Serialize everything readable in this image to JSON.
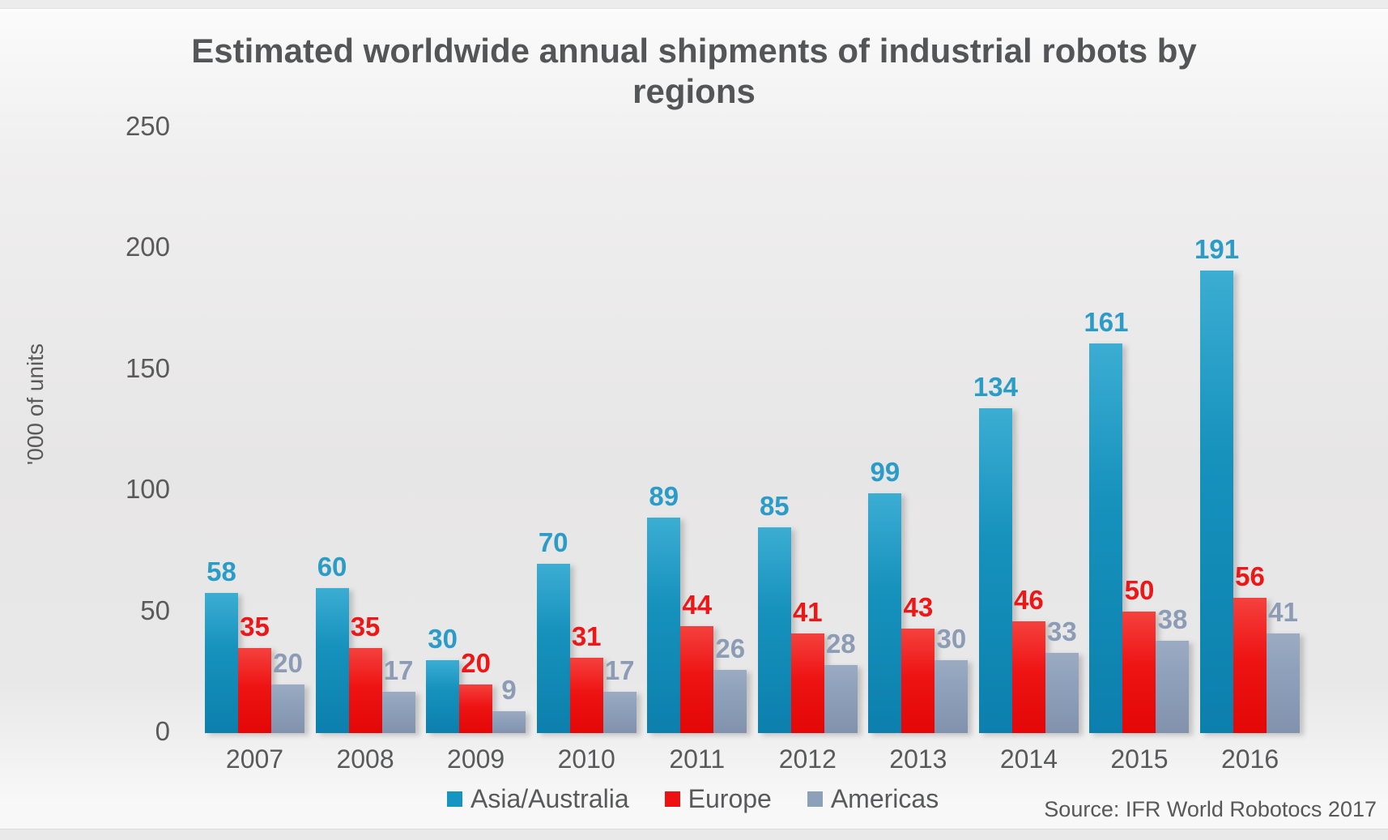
{
  "chart_data": {
    "type": "bar",
    "title": "Estimated worldwide annual shipments of industrial robots by regions",
    "ylabel": "'000 of units",
    "source": "Source: IFR World Robotocs 2017",
    "categories": [
      "2007",
      "2008",
      "2009",
      "2010",
      "2011",
      "2012",
      "2013",
      "2014",
      "2015",
      "2016"
    ],
    "series": [
      {
        "name": "Asia/Australia",
        "color": "#1596c2",
        "label_color": "#2b9cc7",
        "values": [
          58,
          60,
          30,
          70,
          89,
          85,
          99,
          134,
          161,
          191
        ]
      },
      {
        "name": "Europe",
        "color": "#ee1111",
        "label_color": "#ed1717",
        "values": [
          35,
          35,
          20,
          31,
          44,
          41,
          43,
          46,
          50,
          56
        ]
      },
      {
        "name": "Americas",
        "color": "#8da0ba",
        "label_color": "#8c9cb5",
        "values": [
          20,
          17,
          9,
          17,
          26,
          28,
          30,
          33,
          38,
          41
        ]
      }
    ],
    "yticks": [
      0,
      50,
      100,
      150,
      200,
      250
    ],
    "ylim": [
      0,
      250
    ],
    "grid": false,
    "legend_position": "bottom",
    "title_color": "#545557",
    "axis_text_color": "#58595b"
  }
}
